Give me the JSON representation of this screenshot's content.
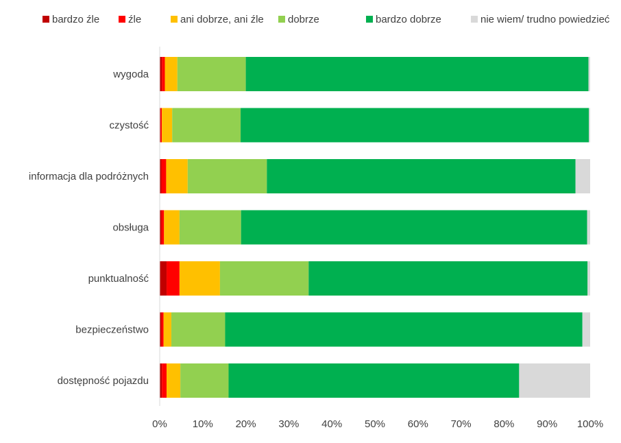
{
  "chart_data": {
    "type": "bar",
    "orientation": "horizontal",
    "stacked": true,
    "percent": true,
    "title": "",
    "xlabel": "",
    "ylabel": "",
    "xlim": [
      0,
      100
    ],
    "legend_position": "top",
    "grid": false,
    "x_ticks": [
      "0%",
      "10%",
      "20%",
      "30%",
      "40%",
      "50%",
      "60%",
      "70%",
      "80%",
      "90%",
      "100%"
    ],
    "categories": [
      "wygoda",
      "czystość",
      "informacja dla podróżnych",
      "obsługa",
      "punktualność",
      "bezpieczeństwo",
      "dostępność pojazdu"
    ],
    "series": [
      {
        "name": "bardzo źle",
        "color": "#C00000",
        "values": [
          0.5,
          0.2,
          0.4,
          0.4,
          1.6,
          0.4,
          0.5
        ]
      },
      {
        "name": "źle",
        "color": "#FF0000",
        "values": [
          0.7,
          0.3,
          1.1,
          0.6,
          3.0,
          0.5,
          1.1
        ]
      },
      {
        "name": "ani dobrze, ani źle",
        "color": "#FFC000",
        "values": [
          2.9,
          2.4,
          5.0,
          3.6,
          9.4,
          1.8,
          3.2
        ]
      },
      {
        "name": "dobrze",
        "color": "#92D050",
        "values": [
          15.9,
          15.9,
          18.4,
          14.3,
          20.6,
          12.5,
          11.2
        ]
      },
      {
        "name": "bardzo dobrze",
        "color": "#00B050",
        "values": [
          79.6,
          80.9,
          71.7,
          80.4,
          64.8,
          83.0,
          67.5
        ]
      },
      {
        "name": "nie wiem/ trudno powiedzieć",
        "color": "#D9D9D9",
        "values": [
          0.4,
          0.3,
          3.4,
          0.7,
          0.6,
          1.8,
          16.5
        ]
      }
    ]
  }
}
